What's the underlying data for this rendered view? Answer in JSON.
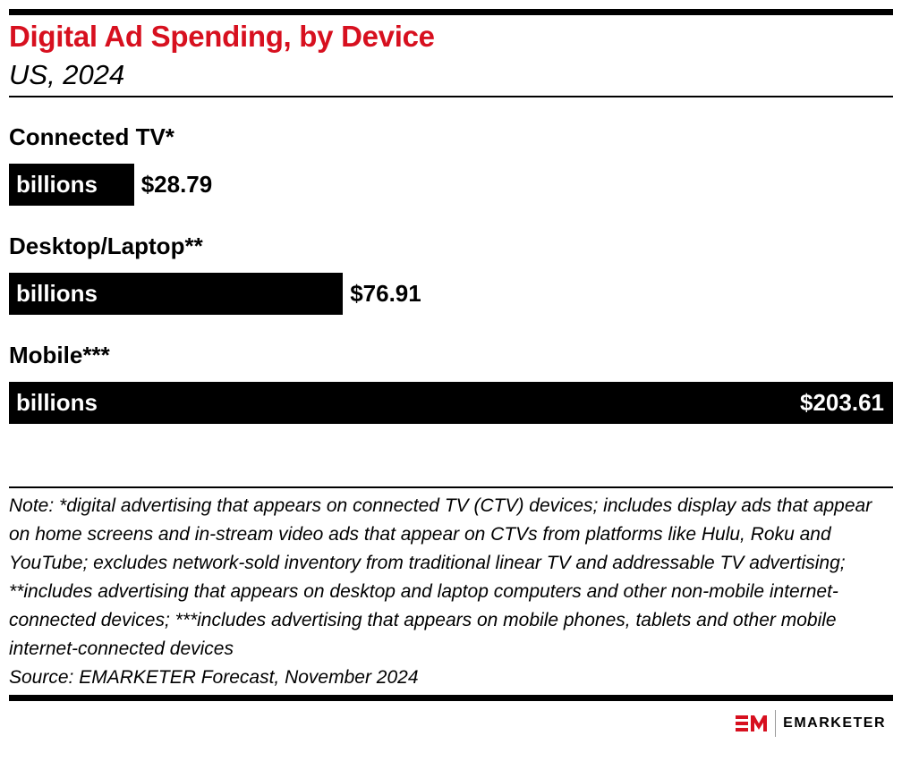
{
  "chart_data": {
    "type": "bar",
    "orientation": "horizontal",
    "title": "Digital Ad Spending, by Device",
    "subtitle": "US, 2024",
    "categories": [
      "Connected TV*",
      "Desktop/Laptop**",
      "Mobile***"
    ],
    "unit": "billions",
    "values": [
      28.79,
      76.91,
      203.61
    ],
    "value_labels": [
      "$28.79",
      "$76.91",
      "$203.61"
    ],
    "color": "#000000",
    "note": "Note: *digital advertising that appears on connected TV (CTV) devices; includes display ads that appear on home screens and in-stream video ads that appear on CTVs from platforms like Hulu, Roku and YouTube; excludes network-sold inventory from traditional linear TV and addressable TV advertising; **includes advertising that appears on desktop and laptop computers and other non-mobile internet-connected devices; ***includes advertising that appears on mobile phones, tablets and other mobile internet-connected devices",
    "source": "Source: EMARKETER Forecast, November 2024",
    "logo": "EMARKETER"
  }
}
